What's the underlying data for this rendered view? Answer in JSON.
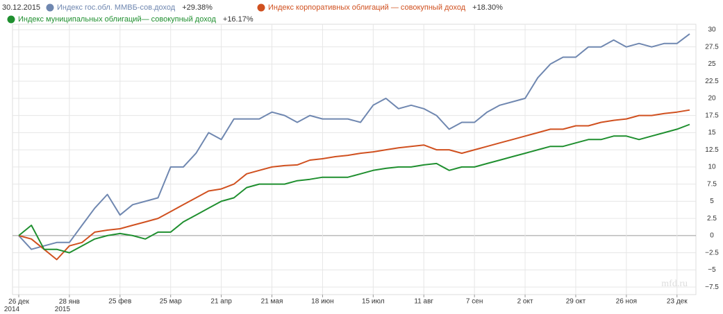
{
  "chart_data": {
    "type": "line",
    "date": "30.12.2015",
    "watermark": "mfd.ru",
    "categories": [
      "26 дек 2014",
      null,
      null,
      null,
      "28 янв 2015",
      null,
      null,
      null,
      "25 фев",
      null,
      null,
      null,
      "25 мар",
      null,
      null,
      null,
      "21 апр",
      null,
      null,
      null,
      "21 мая",
      null,
      null,
      null,
      "18 июн",
      null,
      null,
      null,
      "15 июл",
      null,
      null,
      null,
      "11 авг",
      null,
      null,
      null,
      "7 сен",
      null,
      null,
      null,
      "2 окт",
      null,
      null,
      null,
      "29 окт",
      null,
      null,
      null,
      "26 ноя",
      null,
      null,
      null,
      "23 дек",
      null
    ],
    "series": [
      {
        "name": "Индекс гос.обл. ММВБ-сов.доход",
        "change_label": "+29.38%",
        "color": "#6f87b0",
        "values": [
          0,
          -2,
          -1.5,
          -1,
          -1,
          1.5,
          4,
          6,
          3,
          4.5,
          5,
          5.5,
          10,
          10,
          12,
          15,
          14,
          17,
          17,
          17,
          18,
          17.5,
          16.5,
          17.5,
          17,
          17,
          17,
          16.5,
          19,
          20,
          18.5,
          19,
          18.5,
          17.5,
          15.5,
          16.5,
          16.5,
          18,
          19,
          19.5,
          20,
          23,
          25,
          26,
          26,
          27.5,
          27.5,
          28.5,
          27.5,
          28,
          27.5,
          28,
          28,
          29.4
        ]
      },
      {
        "name": "Индекс корпоративных облигаций — совокупный доход",
        "change_label": "+18.30%",
        "color": "#d0501f",
        "values": [
          0,
          -0.5,
          -2,
          -3.5,
          -1.5,
          -1,
          0.5,
          0.8,
          1,
          1.5,
          2,
          2.5,
          3.5,
          4.5,
          5.5,
          6.5,
          6.8,
          7.5,
          9,
          9.5,
          10,
          10.2,
          10.3,
          11,
          11.2,
          11.5,
          11.7,
          12,
          12.2,
          12.5,
          12.8,
          13,
          13.2,
          12.5,
          12.5,
          12,
          12.5,
          13,
          13.5,
          14,
          14.5,
          15,
          15.5,
          15.5,
          16,
          16,
          16.5,
          16.8,
          17,
          17.5,
          17.5,
          17.8,
          18,
          18.3
        ]
      },
      {
        "name": "Индекс муниципальных облигаций— совокупный доход",
        "change_label": "+16.17%",
        "color": "#1f8f2f",
        "values": [
          0,
          1.5,
          -2,
          -2,
          -2.5,
          -1.5,
          -0.5,
          0,
          0.3,
          0,
          -0.5,
          0.5,
          0.5,
          2,
          3,
          4,
          5,
          5.5,
          7,
          7.5,
          7.5,
          7.5,
          8,
          8.2,
          8.5,
          8.5,
          8.5,
          9,
          9.5,
          9.8,
          10,
          10,
          10.3,
          10.5,
          9.5,
          10,
          10,
          10.5,
          11,
          11.5,
          12,
          12.5,
          13,
          13,
          13.5,
          14,
          14,
          14.5,
          14.5,
          14,
          14.5,
          15,
          15.5,
          16.2
        ]
      }
    ],
    "ylim": [
      -8.6,
      30.8
    ],
    "yticks": [
      {
        "value": -7.5,
        "label": "−7.5"
      },
      {
        "value": -5,
        "label": "−5"
      },
      {
        "value": -2.5,
        "label": "−2.5"
      },
      0,
      2.5,
      5,
      7.5,
      10,
      12.5,
      15,
      17.5,
      20,
      22.5,
      25,
      27.5,
      30
    ],
    "grid": true
  }
}
